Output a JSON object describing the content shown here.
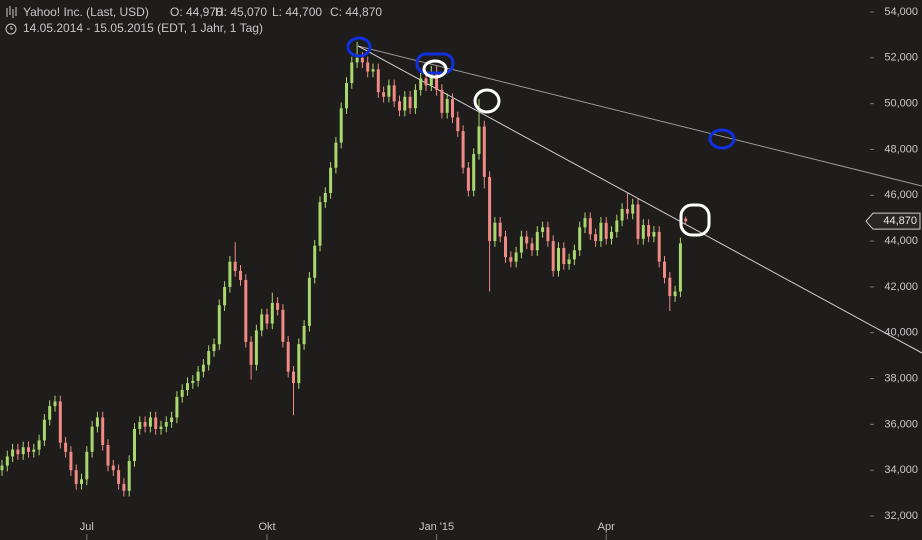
{
  "chart_data": {
    "type": "candlestick",
    "title": "Yahoo! Inc. (Last, USD)",
    "quote": [
      "O: 44,970",
      "H: 45,070",
      "L: 44,700",
      "C: 44,870"
    ],
    "subtitle": "14.05.2014 - 15.05.2015 (EDT, 1 Jahr, 1 Tag)",
    "up_color": "#a8d86e",
    "down_color": "#f08a84",
    "last_price": {
      "value": 44870,
      "label": "44,870"
    },
    "categories": [
      null,
      null,
      null,
      null,
      null,
      null,
      null,
      null,
      null,
      null,
      null,
      null,
      null,
      null,
      null,
      null,
      "Jul",
      null,
      null,
      null,
      null,
      null,
      null,
      null,
      null,
      null,
      null,
      null,
      null,
      null,
      null,
      null,
      null,
      null,
      null,
      null,
      null,
      null,
      null,
      null,
      null,
      null,
      null,
      null,
      null,
      null,
      null,
      null,
      null,
      null,
      "Okt",
      null,
      null,
      null,
      null,
      null,
      null,
      null,
      null,
      null,
      null,
      null,
      null,
      null,
      null,
      null,
      null,
      null,
      null,
      null,
      null,
      null,
      null,
      null,
      null,
      null,
      null,
      null,
      null,
      null,
      null,
      null,
      "Jan '15",
      null,
      null,
      null,
      null,
      null,
      null,
      null,
      null,
      null,
      null,
      null,
      null,
      null,
      null,
      null,
      null,
      null,
      null,
      null,
      null,
      null,
      null,
      null,
      null,
      null,
      null,
      null,
      null,
      null,
      null,
      null,
      "Apr",
      null,
      null,
      null,
      null,
      null,
      null,
      null,
      null,
      null,
      null,
      null,
      null,
      null,
      null,
      null
    ],
    "open": [
      34000,
      34200,
      34600,
      34900,
      34700,
      35000,
      34800,
      34900,
      35300,
      36200,
      36800,
      37000,
      35200,
      34800,
      34000,
      33400,
      33600,
      34800,
      35900,
      36300,
      35100,
      34200,
      34000,
      33400,
      33100,
      34400,
      35800,
      36100,
      35900,
      36300,
      35800,
      35900,
      36100,
      36300,
      37200,
      37500,
      37800,
      37900,
      38300,
      38600,
      39200,
      39500,
      41200,
      42000,
      43100,
      42700,
      42300,
      39600,
      38600,
      40100,
      40800,
      40400,
      41300,
      41000,
      39600,
      38300,
      37800,
      39500,
      40300,
      42400,
      43800,
      45700,
      46100,
      47200,
      48300,
      49800,
      50900,
      51800,
      52000,
      51800,
      51400,
      51500,
      50500,
      50300,
      50800,
      50100,
      49700,
      50300,
      49800,
      50600,
      51100,
      50800,
      51400,
      50600,
      49600,
      50200,
      49400,
      48800,
      47200,
      46200,
      47800,
      49000,
      46800,
      44000,
      44800,
      44200,
      43300,
      43100,
      43500,
      44200,
      43900,
      43600,
      44400,
      44600,
      44000,
      42700,
      43700,
      43000,
      43200,
      43600,
      44600,
      45000,
      44300,
      44000,
      44800,
      44100,
      44400,
      44900,
      45400,
      45200,
      45600,
      44100,
      44700,
      44200,
      44400,
      43100,
      42400,
      41600,
      41800,
      44970
    ],
    "high": [
      34450,
      34850,
      35150,
      35150,
      35250,
      35250,
      35150,
      35550,
      36450,
      37050,
      37250,
      37250,
      35450,
      35050,
      34250,
      33850,
      35050,
      36150,
      36550,
      36550,
      35350,
      34450,
      34250,
      33650,
      34650,
      36050,
      36350,
      36350,
      36550,
      36550,
      36150,
      36350,
      36550,
      37450,
      37750,
      38050,
      38150,
      38550,
      38850,
      39450,
      39750,
      41450,
      42250,
      43350,
      43950,
      42950,
      42550,
      39850,
      40350,
      41050,
      41050,
      41750,
      41550,
      41250,
      39850,
      38550,
      39750,
      40550,
      42650,
      44050,
      45950,
      46350,
      47450,
      48550,
      50050,
      51150,
      52050,
      52700,
      52250,
      52050,
      51750,
      51750,
      50750,
      51050,
      51050,
      50350,
      50550,
      50550,
      50850,
      51350,
      51350,
      51650,
      51650,
      50850,
      50450,
      50450,
      49650,
      49050,
      47450,
      48050,
      50200,
      49250,
      47050,
      45050,
      45050,
      44450,
      43550,
      43750,
      44450,
      44450,
      44150,
      44650,
      44850,
      44850,
      44250,
      43950,
      43950,
      43450,
      43850,
      44850,
      45250,
      45250,
      44550,
      45050,
      45050,
      44650,
      45150,
      45650,
      46100,
      45850,
      45850,
      44950,
      44950,
      44650,
      44650,
      43350,
      42650,
      42050,
      44150,
      45070
    ],
    "low": [
      33750,
      33950,
      34350,
      34450,
      34450,
      34550,
      34550,
      34650,
      35050,
      35950,
      36550,
      34950,
      34550,
      33750,
      33150,
      33150,
      33350,
      34550,
      35650,
      34850,
      33950,
      33750,
      33150,
      32850,
      32850,
      34150,
      35550,
      35650,
      35650,
      35550,
      35550,
      35650,
      35850,
      36050,
      36950,
      37250,
      37550,
      37650,
      38050,
      38350,
      38950,
      39250,
      40950,
      41750,
      42450,
      42050,
      39350,
      37950,
      38350,
      39850,
      40150,
      40150,
      40750,
      39350,
      38050,
      36400,
      37550,
      39250,
      40050,
      42150,
      43550,
      45450,
      45850,
      46950,
      48050,
      49550,
      50650,
      51550,
      51550,
      51150,
      51150,
      50250,
      50050,
      50050,
      49850,
      49450,
      49450,
      49550,
      49550,
      50350,
      50550,
      50550,
      50350,
      49350,
      49350,
      49150,
      48550,
      46950,
      45950,
      45950,
      47550,
      46300,
      41800,
      43750,
      43950,
      43050,
      42850,
      42850,
      43250,
      43650,
      43350,
      43350,
      44150,
      43750,
      42450,
      42450,
      42750,
      42750,
      42950,
      43350,
      44350,
      44050,
      43750,
      43750,
      43850,
      43850,
      44150,
      44650,
      44950,
      44950,
      43850,
      43850,
      43950,
      43950,
      42850,
      42150,
      40950,
      41350,
      41550,
      44700
    ],
    "close": [
      34200,
      34600,
      34900,
      34700,
      35000,
      34800,
      34900,
      35300,
      36200,
      36800,
      37000,
      35200,
      34800,
      34000,
      33400,
      33600,
      34800,
      35900,
      36300,
      35100,
      34200,
      34000,
      33400,
      33100,
      34400,
      35800,
      36100,
      35900,
      36300,
      35800,
      35900,
      36100,
      36300,
      37200,
      37500,
      37800,
      37900,
      38300,
      38600,
      39200,
      39500,
      41200,
      42000,
      43100,
      42700,
      42300,
      39600,
      38600,
      40100,
      40800,
      40400,
      41300,
      41000,
      39600,
      38300,
      37800,
      39500,
      40300,
      42400,
      43800,
      45700,
      46100,
      47200,
      48300,
      49800,
      50900,
      51800,
      52000,
      51800,
      51400,
      51500,
      50500,
      50300,
      50800,
      50100,
      49700,
      50300,
      49800,
      50600,
      51100,
      50800,
      51400,
      50600,
      49600,
      50200,
      49400,
      48800,
      47200,
      46200,
      47800,
      49000,
      46800,
      44000,
      44800,
      44200,
      43300,
      43100,
      43500,
      44200,
      43900,
      43600,
      44400,
      44600,
      44000,
      42700,
      43700,
      43000,
      43200,
      43600,
      44600,
      45000,
      44300,
      44000,
      44800,
      44100,
      44400,
      44900,
      45400,
      45200,
      45600,
      44100,
      44700,
      44200,
      44400,
      43100,
      42400,
      41600,
      41800,
      43900,
      44870
    ],
    "ylim": [
      32000,
      54000
    ],
    "yticks": [
      {
        "value": 32000,
        "label": "32,000"
      },
      {
        "value": 34000,
        "label": "34,000"
      },
      {
        "value": 36000,
        "label": "36,000"
      },
      {
        "value": 38000,
        "label": "38,000"
      },
      {
        "value": 40000,
        "label": "40,000"
      },
      {
        "value": 42000,
        "label": "42,000"
      },
      {
        "value": 44000,
        "label": "44,000"
      },
      {
        "value": 46000,
        "label": "46,000"
      },
      {
        "value": 48000,
        "label": "48,000"
      },
      {
        "value": 50000,
        "label": "50,000"
      },
      {
        "value": 52000,
        "label": "52,000"
      },
      {
        "value": 54000,
        "label": "54,000"
      }
    ]
  }
}
